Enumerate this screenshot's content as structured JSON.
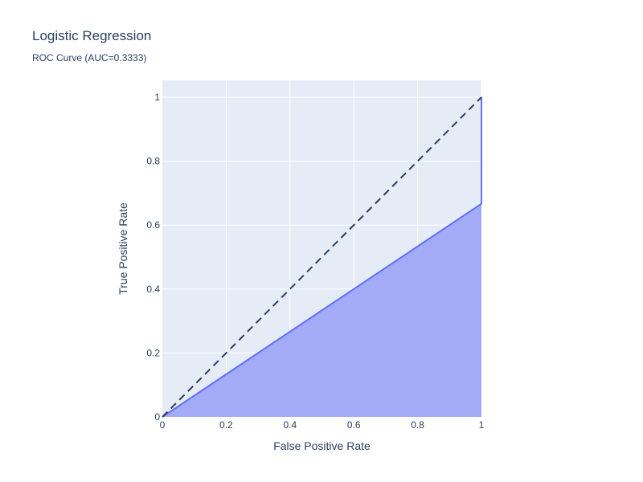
{
  "chart_data": {
    "type": "area",
    "title": "Logistic Regression",
    "subtitle": "ROC Curve (AUC=0.3333)",
    "xlabel": "False Positive Rate",
    "ylabel": "True Positive Rate",
    "xlim": [
      0,
      1
    ],
    "ylim": [
      0,
      1
    ],
    "x_ticks": [
      "0",
      "0.2",
      "0.4",
      "0.6",
      "0.8",
      "1"
    ],
    "y_ticks": [
      "0",
      "0.2",
      "0.4",
      "0.6",
      "0.8",
      "1"
    ],
    "grid": true,
    "legend": "none",
    "series": [
      {
        "x": [
          0,
          1,
          1
        ],
        "y": [
          0,
          0.6667,
          1
        ],
        "line_color": "#636efa",
        "fill_color": "#a3abf7"
      }
    ],
    "reference_line": {
      "x": [
        0,
        1
      ],
      "y": [
        0,
        1
      ],
      "style": "dashed",
      "color": "#2a3f5f"
    }
  },
  "colors": {
    "plot_background": "#e5ecf6",
    "grid": "#ffffff",
    "text": "#2a3f5f"
  }
}
